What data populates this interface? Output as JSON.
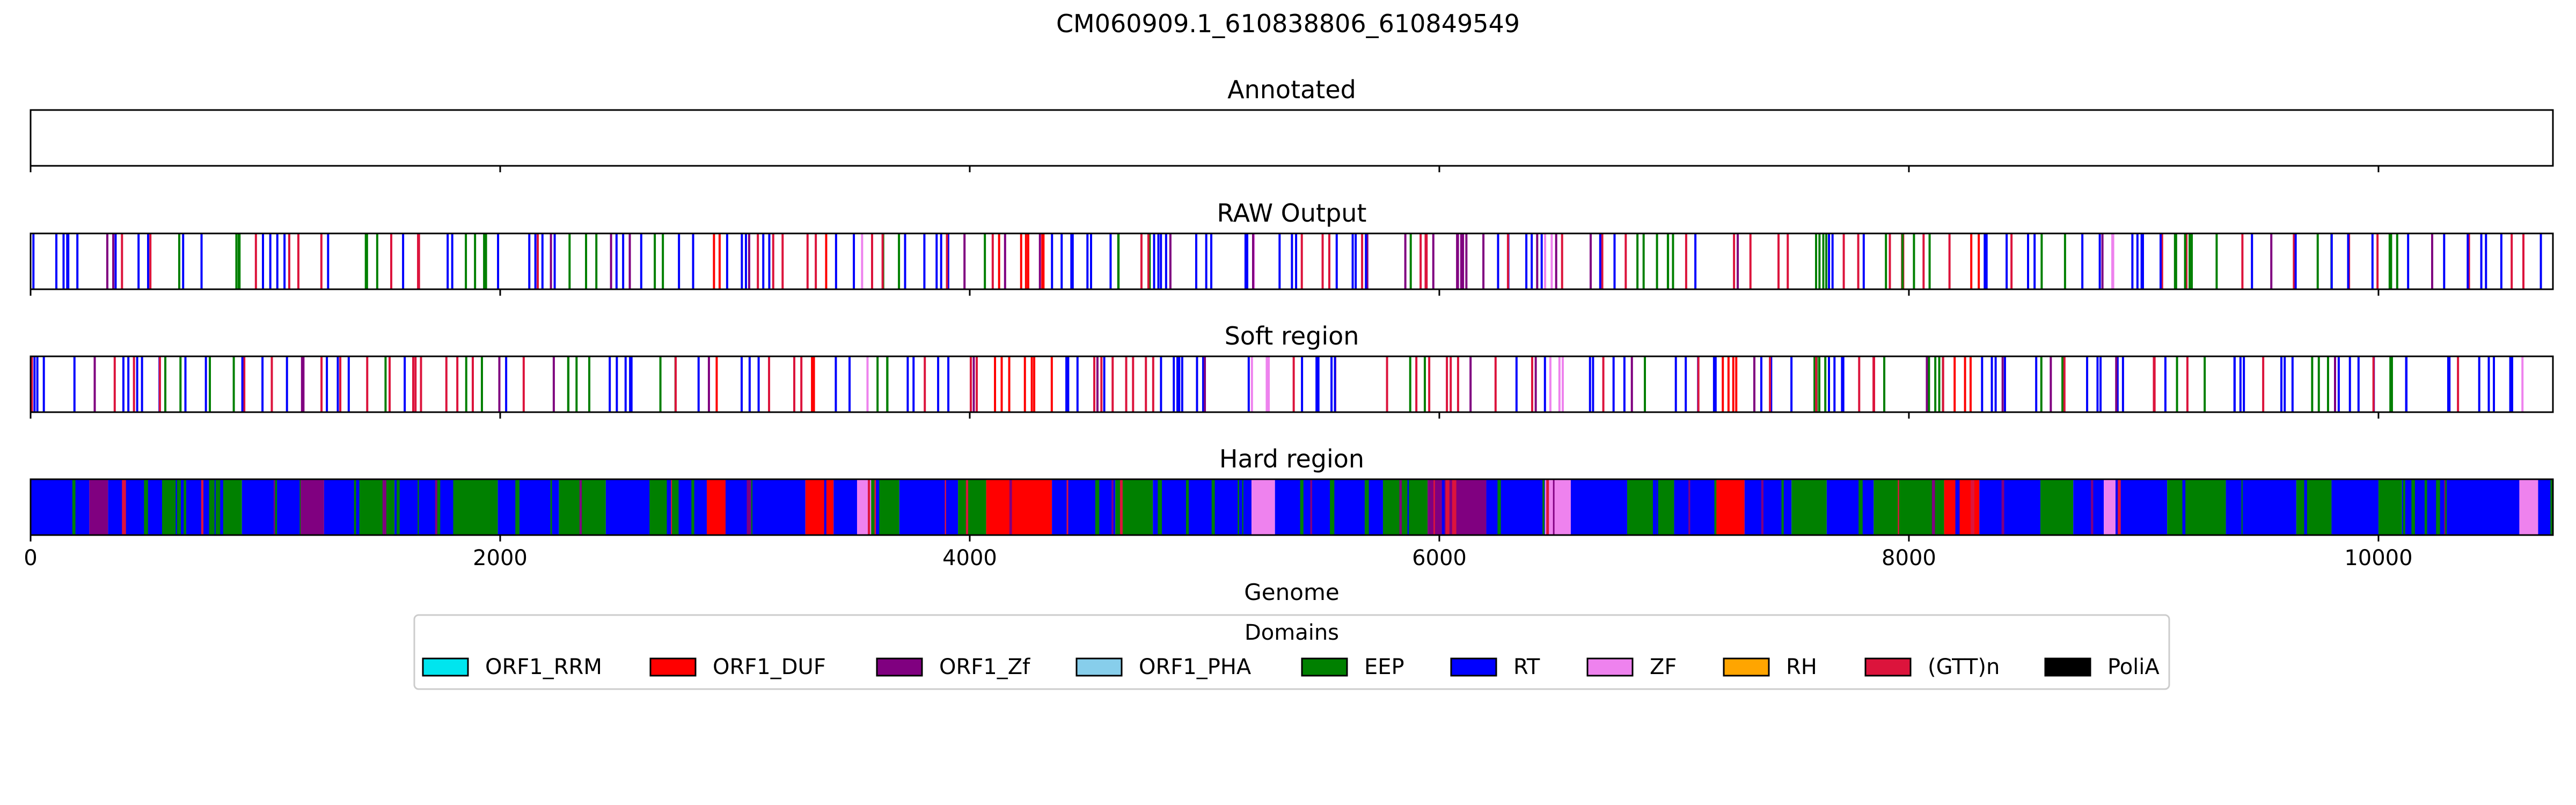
{
  "chart_data": {
    "type": "domain-track",
    "title": "CM060909.1_610838806_610849549",
    "xlabel": "Genome",
    "xlim": [
      0,
      10743
    ],
    "xticks": [
      0,
      2000,
      4000,
      6000,
      8000,
      10000
    ],
    "xtick_labels": [
      "0",
      "2000",
      "4000",
      "6000",
      "8000",
      "10000"
    ],
    "legend": {
      "title": "Domains",
      "placement": "bottom-center",
      "entries": [
        {
          "name": "ORF1_RRM",
          "color": "#00e5ee"
        },
        {
          "name": "ORF1_DUF",
          "color": "#ff0000"
        },
        {
          "name": "ORF1_Zf",
          "color": "#800080"
        },
        {
          "name": "ORF1_PHA",
          "color": "#87ceeb"
        },
        {
          "name": "EEP",
          "color": "#008000"
        },
        {
          "name": "RT",
          "color": "#0000ff"
        },
        {
          "name": "ZF",
          "color": "#ee82ee"
        },
        {
          "name": "RH",
          "color": "#ffa500"
        },
        {
          "name": "(GTT)n",
          "color": "#dc143c"
        },
        {
          "name": "PoliA",
          "color": "#000000"
        }
      ]
    },
    "panels": [
      {
        "title": "Annotated",
        "mode": "empty",
        "segments": []
      },
      {
        "title": "RAW Output",
        "mode": "lines",
        "segments": [
          {
            "start": 0,
            "end": 250,
            "domain": "RT"
          },
          {
            "start": 250,
            "end": 330,
            "domain": "ORF1_Zf"
          },
          {
            "start": 330,
            "end": 560,
            "domain": "RT"
          },
          {
            "start": 560,
            "end": 640,
            "domain": "EEP"
          },
          {
            "start": 640,
            "end": 760,
            "domain": "RT"
          },
          {
            "start": 760,
            "end": 900,
            "domain": "EEP"
          },
          {
            "start": 900,
            "end": 1150,
            "domain": "RT"
          },
          {
            "start": 1150,
            "end": 1250,
            "domain": "ORF1_Zf"
          },
          {
            "start": 1250,
            "end": 1400,
            "domain": "RT"
          },
          {
            "start": 1400,
            "end": 1550,
            "domain": "EEP"
          },
          {
            "start": 1550,
            "end": 1800,
            "domain": "RT"
          },
          {
            "start": 1800,
            "end": 1990,
            "domain": "EEP"
          },
          {
            "start": 1990,
            "end": 2250,
            "domain": "RT"
          },
          {
            "start": 2250,
            "end": 2450,
            "domain": "EEP"
          },
          {
            "start": 2450,
            "end": 2650,
            "domain": "RT"
          },
          {
            "start": 2650,
            "end": 2760,
            "domain": "EEP"
          },
          {
            "start": 2760,
            "end": 2880,
            "domain": "RT"
          },
          {
            "start": 2880,
            "end": 2960,
            "domain": "ORF1_DUF"
          },
          {
            "start": 2960,
            "end": 3300,
            "domain": "RT"
          },
          {
            "start": 3300,
            "end": 3420,
            "domain": "ORF1_DUF"
          },
          {
            "start": 3420,
            "end": 3520,
            "domain": "RT"
          },
          {
            "start": 3520,
            "end": 3580,
            "domain": "ZF"
          },
          {
            "start": 3580,
            "end": 3700,
            "domain": "EEP"
          },
          {
            "start": 3700,
            "end": 3950,
            "domain": "RT"
          },
          {
            "start": 3950,
            "end": 4070,
            "domain": "EEP"
          },
          {
            "start": 4070,
            "end": 4350,
            "domain": "ORF1_DUF"
          },
          {
            "start": 4350,
            "end": 4620,
            "domain": "RT"
          },
          {
            "start": 4620,
            "end": 4780,
            "domain": "EEP"
          },
          {
            "start": 4780,
            "end": 5200,
            "domain": "RT"
          },
          {
            "start": 5200,
            "end": 5300,
            "domain": "ZF"
          },
          {
            "start": 5300,
            "end": 5760,
            "domain": "RT"
          },
          {
            "start": 5760,
            "end": 5950,
            "domain": "EEP"
          },
          {
            "start": 5950,
            "end": 6200,
            "domain": "ORF1_Zf"
          },
          {
            "start": 6200,
            "end": 6450,
            "domain": "RT"
          },
          {
            "start": 6450,
            "end": 6560,
            "domain": "ZF"
          },
          {
            "start": 6560,
            "end": 6800,
            "domain": "RT"
          },
          {
            "start": 6800,
            "end": 7000,
            "domain": "EEP"
          },
          {
            "start": 7000,
            "end": 7180,
            "domain": "RT"
          },
          {
            "start": 7180,
            "end": 7300,
            "domain": "ORF1_DUF"
          },
          {
            "start": 7300,
            "end": 7500,
            "domain": "RT"
          },
          {
            "start": 7500,
            "end": 7650,
            "domain": "EEP"
          },
          {
            "start": 7650,
            "end": 7850,
            "domain": "RT"
          },
          {
            "start": 7850,
            "end": 8150,
            "domain": "EEP"
          },
          {
            "start": 8150,
            "end": 8300,
            "domain": "ORF1_DUF"
          },
          {
            "start": 8300,
            "end": 8560,
            "domain": "RT"
          },
          {
            "start": 8560,
            "end": 8700,
            "domain": "EEP"
          },
          {
            "start": 8700,
            "end": 8830,
            "domain": "RT"
          },
          {
            "start": 8830,
            "end": 8880,
            "domain": "ZF"
          },
          {
            "start": 8880,
            "end": 9100,
            "domain": "RT"
          },
          {
            "start": 9100,
            "end": 9350,
            "domain": "EEP"
          },
          {
            "start": 9350,
            "end": 9650,
            "domain": "RT"
          },
          {
            "start": 9650,
            "end": 9800,
            "domain": "EEP"
          },
          {
            "start": 9800,
            "end": 10000,
            "domain": "RT"
          },
          {
            "start": 10000,
            "end": 10100,
            "domain": "EEP"
          },
          {
            "start": 10100,
            "end": 10600,
            "domain": "RT"
          },
          {
            "start": 10600,
            "end": 10680,
            "domain": "ZF"
          },
          {
            "start": 10680,
            "end": 10743,
            "domain": "RT"
          }
        ]
      },
      {
        "title": "Soft region",
        "mode": "lines",
        "segments": [
          {
            "start": 0,
            "end": 250,
            "domain": "RT"
          },
          {
            "start": 250,
            "end": 330,
            "domain": "ORF1_Zf"
          },
          {
            "start": 330,
            "end": 560,
            "domain": "RT"
          },
          {
            "start": 560,
            "end": 640,
            "domain": "EEP"
          },
          {
            "start": 640,
            "end": 760,
            "domain": "RT"
          },
          {
            "start": 760,
            "end": 900,
            "domain": "EEP"
          },
          {
            "start": 900,
            "end": 1150,
            "domain": "RT"
          },
          {
            "start": 1150,
            "end": 1250,
            "domain": "ORF1_Zf"
          },
          {
            "start": 1250,
            "end": 1400,
            "domain": "RT"
          },
          {
            "start": 1400,
            "end": 1550,
            "domain": "EEP"
          },
          {
            "start": 1550,
            "end": 1800,
            "domain": "RT"
          },
          {
            "start": 1800,
            "end": 1990,
            "domain": "EEP"
          },
          {
            "start": 1990,
            "end": 2250,
            "domain": "RT"
          },
          {
            "start": 2250,
            "end": 2450,
            "domain": "EEP"
          },
          {
            "start": 2450,
            "end": 2650,
            "domain": "RT"
          },
          {
            "start": 2650,
            "end": 2760,
            "domain": "EEP"
          },
          {
            "start": 2760,
            "end": 2880,
            "domain": "RT"
          },
          {
            "start": 2880,
            "end": 2960,
            "domain": "ORF1_DUF"
          },
          {
            "start": 2960,
            "end": 3300,
            "domain": "RT"
          },
          {
            "start": 3300,
            "end": 3420,
            "domain": "ORF1_DUF"
          },
          {
            "start": 3420,
            "end": 3520,
            "domain": "RT"
          },
          {
            "start": 3520,
            "end": 3580,
            "domain": "ZF"
          },
          {
            "start": 3580,
            "end": 3700,
            "domain": "EEP"
          },
          {
            "start": 3700,
            "end": 3950,
            "domain": "RT"
          },
          {
            "start": 3950,
            "end": 4070,
            "domain": "EEP"
          },
          {
            "start": 4070,
            "end": 4350,
            "domain": "ORF1_DUF"
          },
          {
            "start": 4350,
            "end": 4620,
            "domain": "RT"
          },
          {
            "start": 4620,
            "end": 4780,
            "domain": "EEP"
          },
          {
            "start": 4780,
            "end": 5200,
            "domain": "RT"
          },
          {
            "start": 5200,
            "end": 5300,
            "domain": "ZF"
          },
          {
            "start": 5300,
            "end": 5760,
            "domain": "RT"
          },
          {
            "start": 5760,
            "end": 5950,
            "domain": "EEP"
          },
          {
            "start": 5950,
            "end": 6200,
            "domain": "ORF1_Zf"
          },
          {
            "start": 6200,
            "end": 6450,
            "domain": "RT"
          },
          {
            "start": 6450,
            "end": 6560,
            "domain": "ZF"
          },
          {
            "start": 6560,
            "end": 6800,
            "domain": "RT"
          },
          {
            "start": 6800,
            "end": 7000,
            "domain": "EEP"
          },
          {
            "start": 7000,
            "end": 7180,
            "domain": "RT"
          },
          {
            "start": 7180,
            "end": 7300,
            "domain": "ORF1_DUF"
          },
          {
            "start": 7300,
            "end": 7500,
            "domain": "RT"
          },
          {
            "start": 7500,
            "end": 7650,
            "domain": "EEP"
          },
          {
            "start": 7650,
            "end": 7850,
            "domain": "RT"
          },
          {
            "start": 7850,
            "end": 8150,
            "domain": "EEP"
          },
          {
            "start": 8150,
            "end": 8300,
            "domain": "ORF1_DUF"
          },
          {
            "start": 8300,
            "end": 8560,
            "domain": "RT"
          },
          {
            "start": 8560,
            "end": 8700,
            "domain": "EEP"
          },
          {
            "start": 8700,
            "end": 8830,
            "domain": "RT"
          },
          {
            "start": 8830,
            "end": 8880,
            "domain": "ZF"
          },
          {
            "start": 8880,
            "end": 9100,
            "domain": "RT"
          },
          {
            "start": 9100,
            "end": 9350,
            "domain": "EEP"
          },
          {
            "start": 9350,
            "end": 9650,
            "domain": "RT"
          },
          {
            "start": 9650,
            "end": 9800,
            "domain": "EEP"
          },
          {
            "start": 9800,
            "end": 10000,
            "domain": "RT"
          },
          {
            "start": 10000,
            "end": 10100,
            "domain": "EEP"
          },
          {
            "start": 10100,
            "end": 10600,
            "domain": "RT"
          },
          {
            "start": 10600,
            "end": 10680,
            "domain": "ZF"
          },
          {
            "start": 10680,
            "end": 10743,
            "domain": "RT"
          }
        ]
      },
      {
        "title": "Hard region",
        "mode": "fill",
        "segments": [
          {
            "start": 0,
            "end": 250,
            "domain": "RT"
          },
          {
            "start": 250,
            "end": 330,
            "domain": "ORF1_Zf"
          },
          {
            "start": 330,
            "end": 560,
            "domain": "RT"
          },
          {
            "start": 560,
            "end": 640,
            "domain": "EEP"
          },
          {
            "start": 640,
            "end": 760,
            "domain": "RT"
          },
          {
            "start": 760,
            "end": 900,
            "domain": "EEP"
          },
          {
            "start": 900,
            "end": 1150,
            "domain": "RT"
          },
          {
            "start": 1150,
            "end": 1250,
            "domain": "ORF1_Zf"
          },
          {
            "start": 1250,
            "end": 1400,
            "domain": "RT"
          },
          {
            "start": 1400,
            "end": 1550,
            "domain": "EEP"
          },
          {
            "start": 1550,
            "end": 1800,
            "domain": "RT"
          },
          {
            "start": 1800,
            "end": 1990,
            "domain": "EEP"
          },
          {
            "start": 1990,
            "end": 2250,
            "domain": "RT"
          },
          {
            "start": 2250,
            "end": 2450,
            "domain": "EEP"
          },
          {
            "start": 2450,
            "end": 2650,
            "domain": "RT"
          },
          {
            "start": 2650,
            "end": 2760,
            "domain": "EEP"
          },
          {
            "start": 2760,
            "end": 2880,
            "domain": "RT"
          },
          {
            "start": 2880,
            "end": 2960,
            "domain": "ORF1_DUF"
          },
          {
            "start": 2960,
            "end": 3300,
            "domain": "RT"
          },
          {
            "start": 3300,
            "end": 3420,
            "domain": "ORF1_DUF"
          },
          {
            "start": 3420,
            "end": 3520,
            "domain": "RT"
          },
          {
            "start": 3520,
            "end": 3580,
            "domain": "ZF"
          },
          {
            "start": 3580,
            "end": 3700,
            "domain": "EEP"
          },
          {
            "start": 3700,
            "end": 3950,
            "domain": "RT"
          },
          {
            "start": 3950,
            "end": 4070,
            "domain": "EEP"
          },
          {
            "start": 4070,
            "end": 4350,
            "domain": "ORF1_DUF"
          },
          {
            "start": 4350,
            "end": 4620,
            "domain": "RT"
          },
          {
            "start": 4620,
            "end": 4780,
            "domain": "EEP"
          },
          {
            "start": 4780,
            "end": 5200,
            "domain": "RT"
          },
          {
            "start": 5200,
            "end": 5300,
            "domain": "ZF"
          },
          {
            "start": 5300,
            "end": 5760,
            "domain": "RT"
          },
          {
            "start": 5760,
            "end": 5950,
            "domain": "EEP"
          },
          {
            "start": 5950,
            "end": 6200,
            "domain": "ORF1_Zf"
          },
          {
            "start": 6200,
            "end": 6450,
            "domain": "RT"
          },
          {
            "start": 6450,
            "end": 6560,
            "domain": "ZF"
          },
          {
            "start": 6560,
            "end": 6800,
            "domain": "RT"
          },
          {
            "start": 6800,
            "end": 7000,
            "domain": "EEP"
          },
          {
            "start": 7000,
            "end": 7180,
            "domain": "RT"
          },
          {
            "start": 7180,
            "end": 7300,
            "domain": "ORF1_DUF"
          },
          {
            "start": 7300,
            "end": 7500,
            "domain": "RT"
          },
          {
            "start": 7500,
            "end": 7650,
            "domain": "EEP"
          },
          {
            "start": 7650,
            "end": 7850,
            "domain": "RT"
          },
          {
            "start": 7850,
            "end": 8150,
            "domain": "EEP"
          },
          {
            "start": 8150,
            "end": 8300,
            "domain": "ORF1_DUF"
          },
          {
            "start": 8300,
            "end": 8560,
            "domain": "RT"
          },
          {
            "start": 8560,
            "end": 8700,
            "domain": "EEP"
          },
          {
            "start": 8700,
            "end": 8830,
            "domain": "RT"
          },
          {
            "start": 8830,
            "end": 8880,
            "domain": "ZF"
          },
          {
            "start": 8880,
            "end": 9100,
            "domain": "RT"
          },
          {
            "start": 9100,
            "end": 9350,
            "domain": "EEP"
          },
          {
            "start": 9350,
            "end": 9650,
            "domain": "RT"
          },
          {
            "start": 9650,
            "end": 9800,
            "domain": "EEP"
          },
          {
            "start": 9800,
            "end": 10000,
            "domain": "RT"
          },
          {
            "start": 10000,
            "end": 10100,
            "domain": "EEP"
          },
          {
            "start": 10100,
            "end": 10600,
            "domain": "RT"
          },
          {
            "start": 10600,
            "end": 10680,
            "domain": "ZF"
          },
          {
            "start": 10680,
            "end": 10743,
            "domain": "RT"
          }
        ]
      }
    ]
  }
}
